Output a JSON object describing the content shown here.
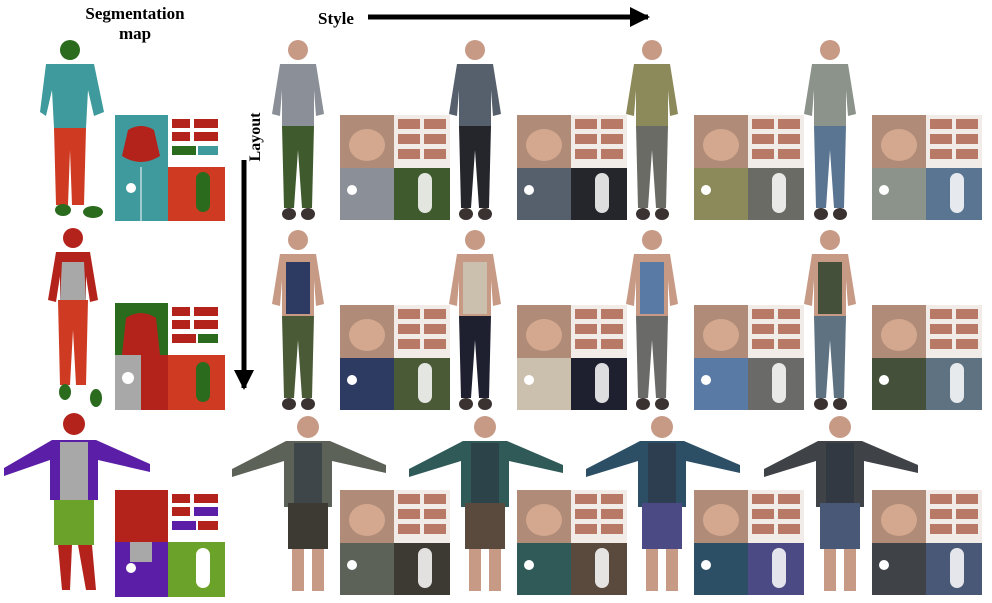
{
  "labels": {
    "segmentation_map_line1": "Segmentation",
    "segmentation_map_line2": "map",
    "style": "Style",
    "layout": "Layout"
  },
  "colors": {
    "seg_skin": "#b3231c",
    "seg_top_teal": "#3e9a9c",
    "seg_pants_red": "#cf3a23",
    "seg_shoes_green": "#2a6b1e",
    "seg_tank_grey": "#a8a8a8",
    "seg_jacket_purple": "#5a1fa6",
    "seg_shorts_green": "#6aa22a"
  },
  "rows": [
    {
      "id": "man-shirt",
      "style_colors": [
        {
          "top": "#8a8f98",
          "bottom": "#3f5a2c"
        },
        {
          "top": "#56606c",
          "bottom": "#24262c"
        },
        {
          "top": "#8c8a5a",
          "bottom": "#6b6b66"
        },
        {
          "top": "#8b938a",
          "bottom": "#5a7591"
        }
      ]
    },
    {
      "id": "woman-tank",
      "style_colors": [
        {
          "top": "#2d3b63",
          "bottom": "#4a5a36"
        },
        {
          "top": "#cbbfae",
          "bottom": "#1e2030"
        },
        {
          "top": "#5a7aa6",
          "bottom": "#6a6a68"
        },
        {
          "top": "#44503a",
          "bottom": "#5e7282"
        }
      ]
    },
    {
      "id": "bald-jacket",
      "style_colors": [
        {
          "top": "#5c6257",
          "bottom": "#3d3a34"
        },
        {
          "top": "#2f5a58",
          "bottom": "#5a4a3e"
        },
        {
          "top": "#2d4f66",
          "bottom": "#4b4a84"
        },
        {
          "top": "#3f4348",
          "bottom": "#4a5878"
        }
      ]
    }
  ]
}
